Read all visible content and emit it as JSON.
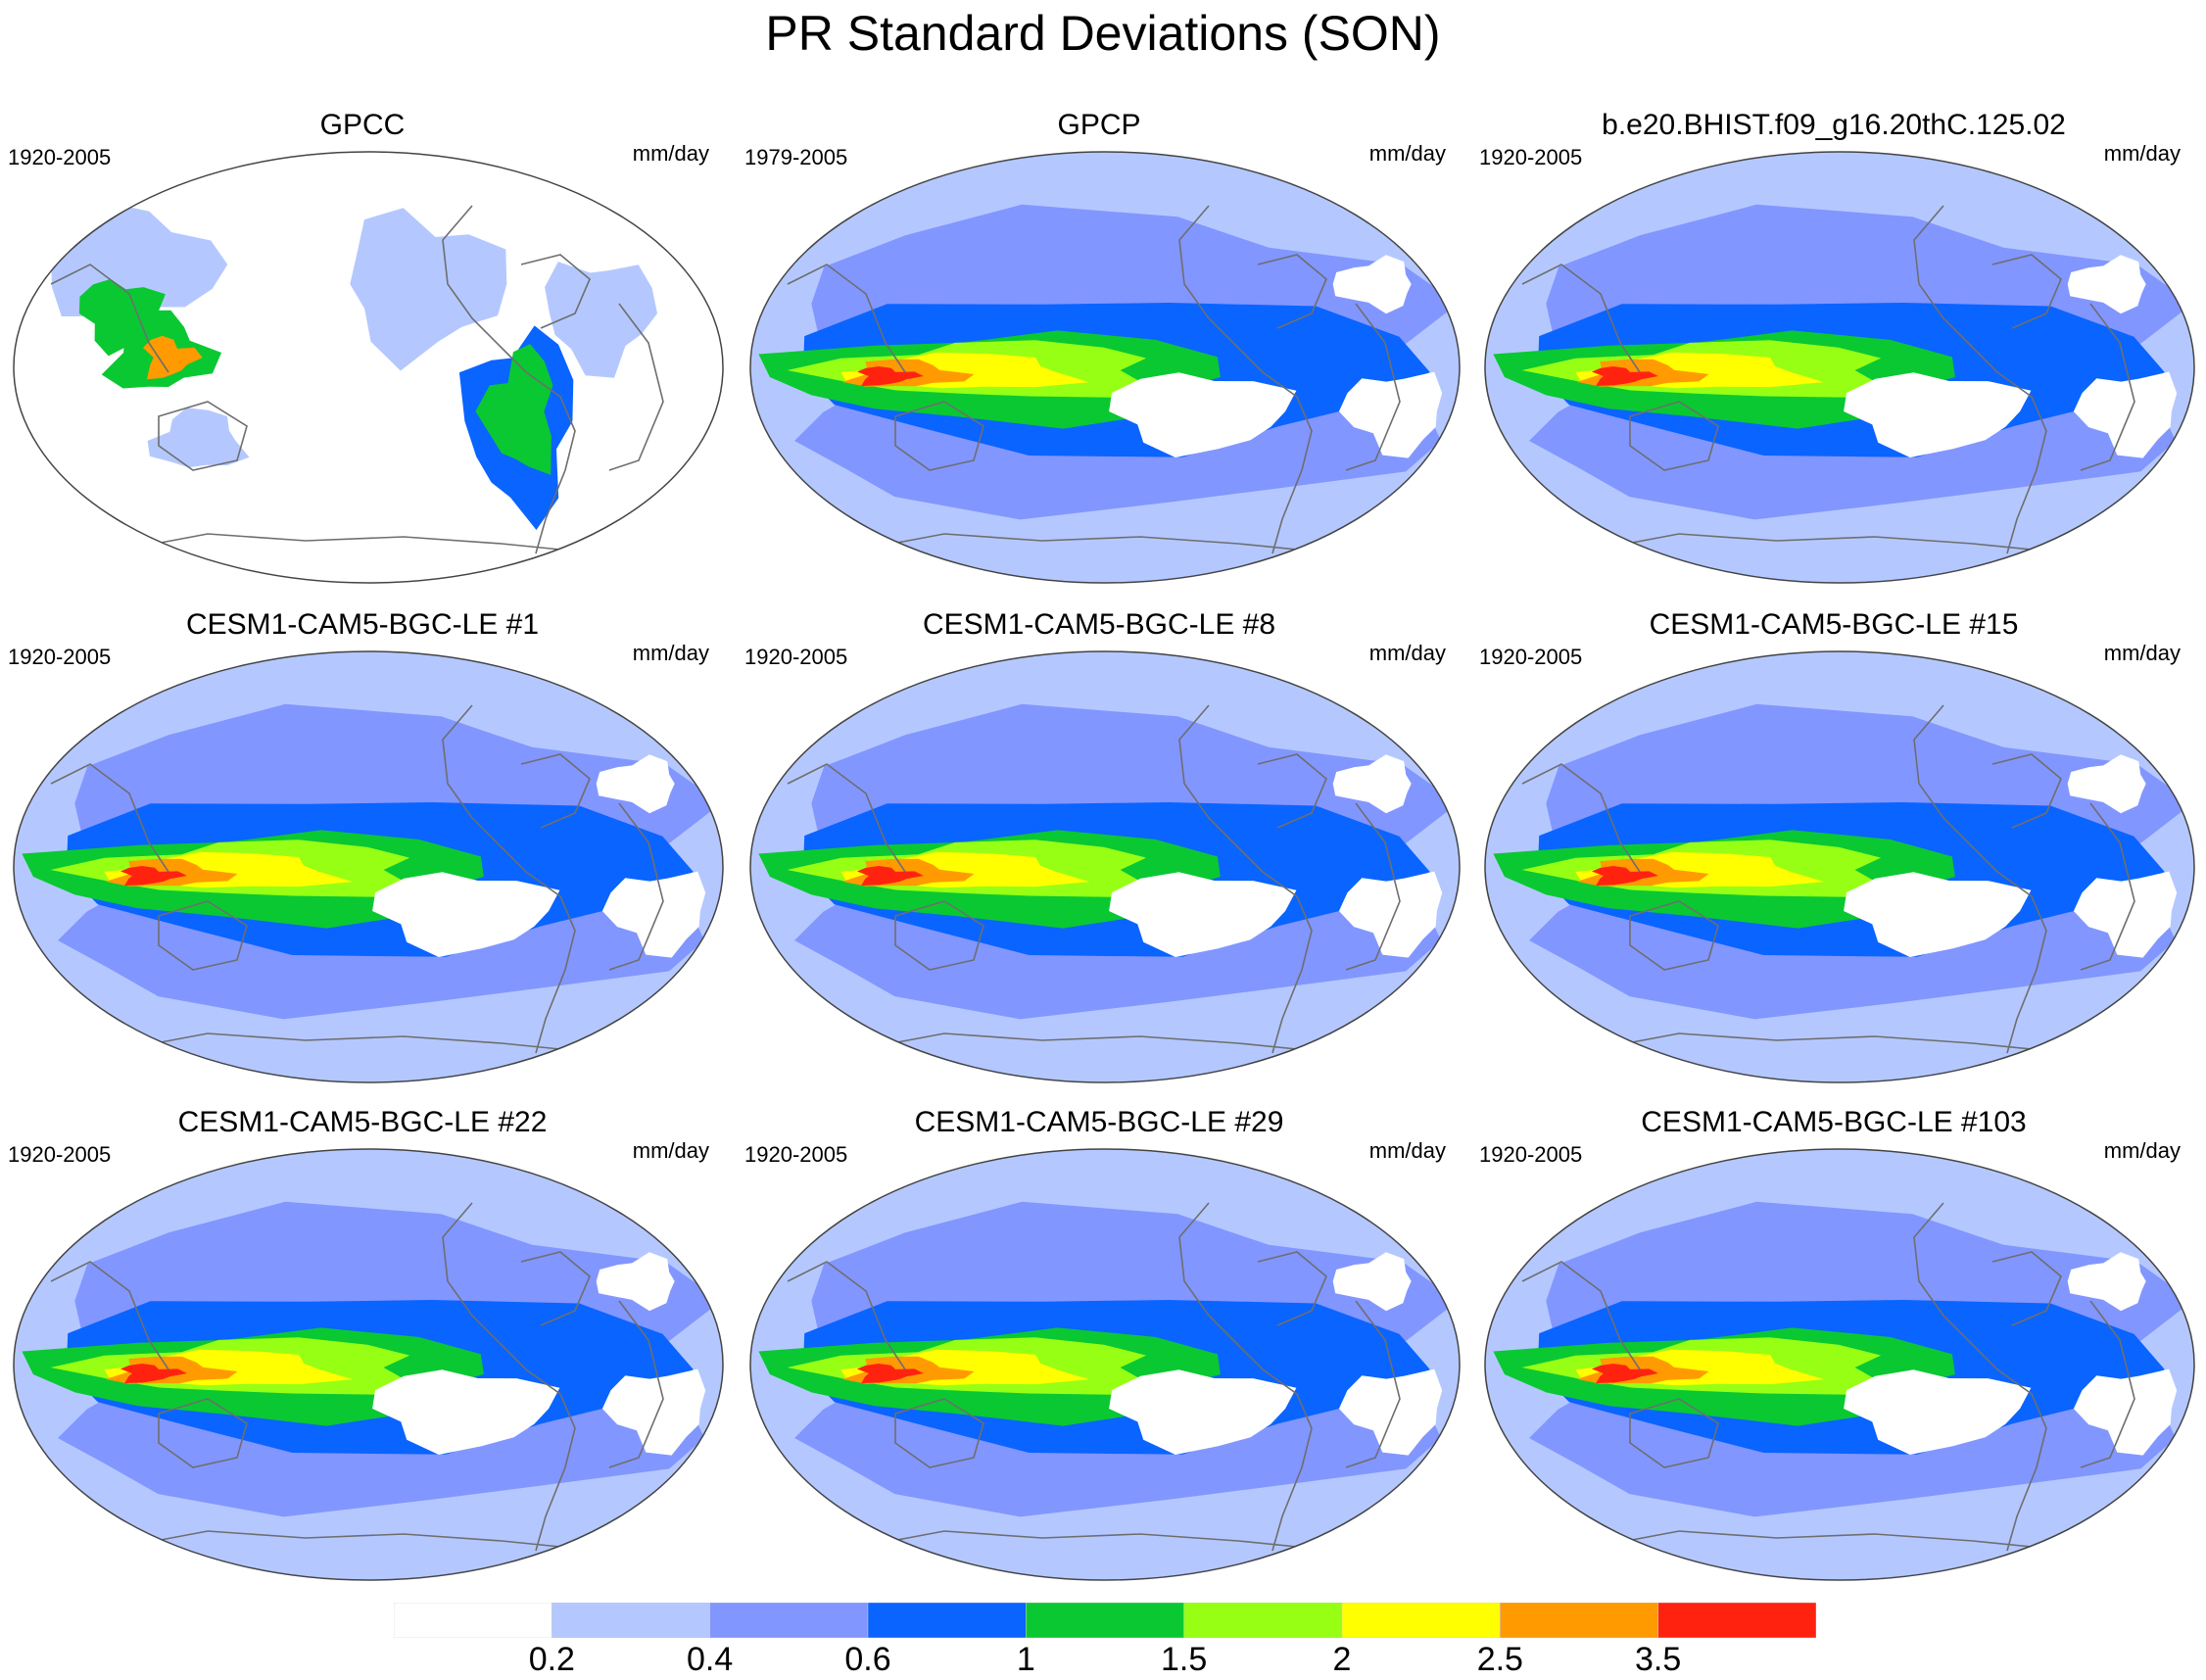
{
  "title": "PR Standard Deviations (SON)",
  "panels": [
    {
      "title": "GPCC",
      "years": "1920-2005",
      "units": "mm/day",
      "kind": "obs-land"
    },
    {
      "title": "GPCP",
      "years": "1979-2005",
      "units": "mm/day",
      "kind": "obs-global"
    },
    {
      "title": "b.e20.BHIST.f09_g16.20thC.125.02",
      "years": "1920-2005",
      "units": "mm/day",
      "kind": "model"
    },
    {
      "title": "CESM1-CAM5-BGC-LE #1",
      "years": "1920-2005",
      "units": "mm/day",
      "kind": "model"
    },
    {
      "title": "CESM1-CAM5-BGC-LE #8",
      "years": "1920-2005",
      "units": "mm/day",
      "kind": "model"
    },
    {
      "title": "CESM1-CAM5-BGC-LE #15",
      "years": "1920-2005",
      "units": "mm/day",
      "kind": "model"
    },
    {
      "title": "CESM1-CAM5-BGC-LE #22",
      "years": "1920-2005",
      "units": "mm/day",
      "kind": "model"
    },
    {
      "title": "CESM1-CAM5-BGC-LE #29",
      "years": "1920-2005",
      "units": "mm/day",
      "kind": "model"
    },
    {
      "title": "CESM1-CAM5-BGC-LE #103",
      "years": "1920-2005",
      "units": "mm/day",
      "kind": "model"
    }
  ],
  "colorbar": {
    "labels": [
      "0.2",
      "0.4",
      "0.6",
      "1",
      "1.5",
      "2",
      "2.5",
      "3.5"
    ],
    "colors": [
      "#ffffff",
      "#b4c8ff",
      "#8296ff",
      "#0a64ff",
      "#0ac832",
      "#96ff14",
      "#ffff00",
      "#ff9b00",
      "#ff230f"
    ]
  }
}
